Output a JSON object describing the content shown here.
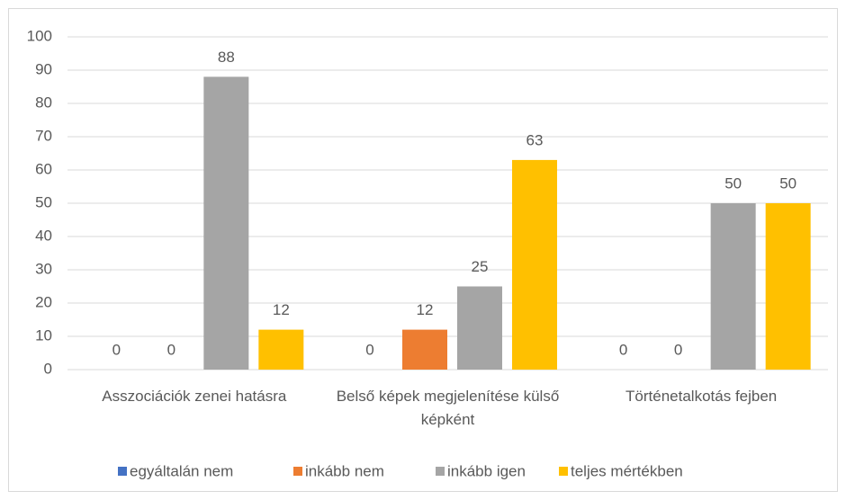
{
  "chart_data": {
    "type": "bar",
    "categories": [
      "Asszociációk zenei hatásra",
      "Belső képek megjelenítése külső képként",
      "Történetalkotás fejben"
    ],
    "series": [
      {
        "name": "egyáltalán nem",
        "color": "#4472c4",
        "values": [
          0,
          0,
          0
        ]
      },
      {
        "name": "inkább nem",
        "color": "#ed7d31",
        "values": [
          0,
          12,
          0
        ]
      },
      {
        "name": "inkább igen",
        "color": "#a5a5a5",
        "values": [
          88,
          25,
          50
        ]
      },
      {
        "name": "teljes mértékben",
        "color": "#ffc000",
        "values": [
          12,
          63,
          50
        ]
      }
    ],
    "ylim": [
      0,
      100
    ],
    "yticks": [
      0,
      10,
      20,
      30,
      40,
      50,
      60,
      70,
      80,
      90,
      100
    ],
    "grid": true,
    "legend": "bottom"
  }
}
